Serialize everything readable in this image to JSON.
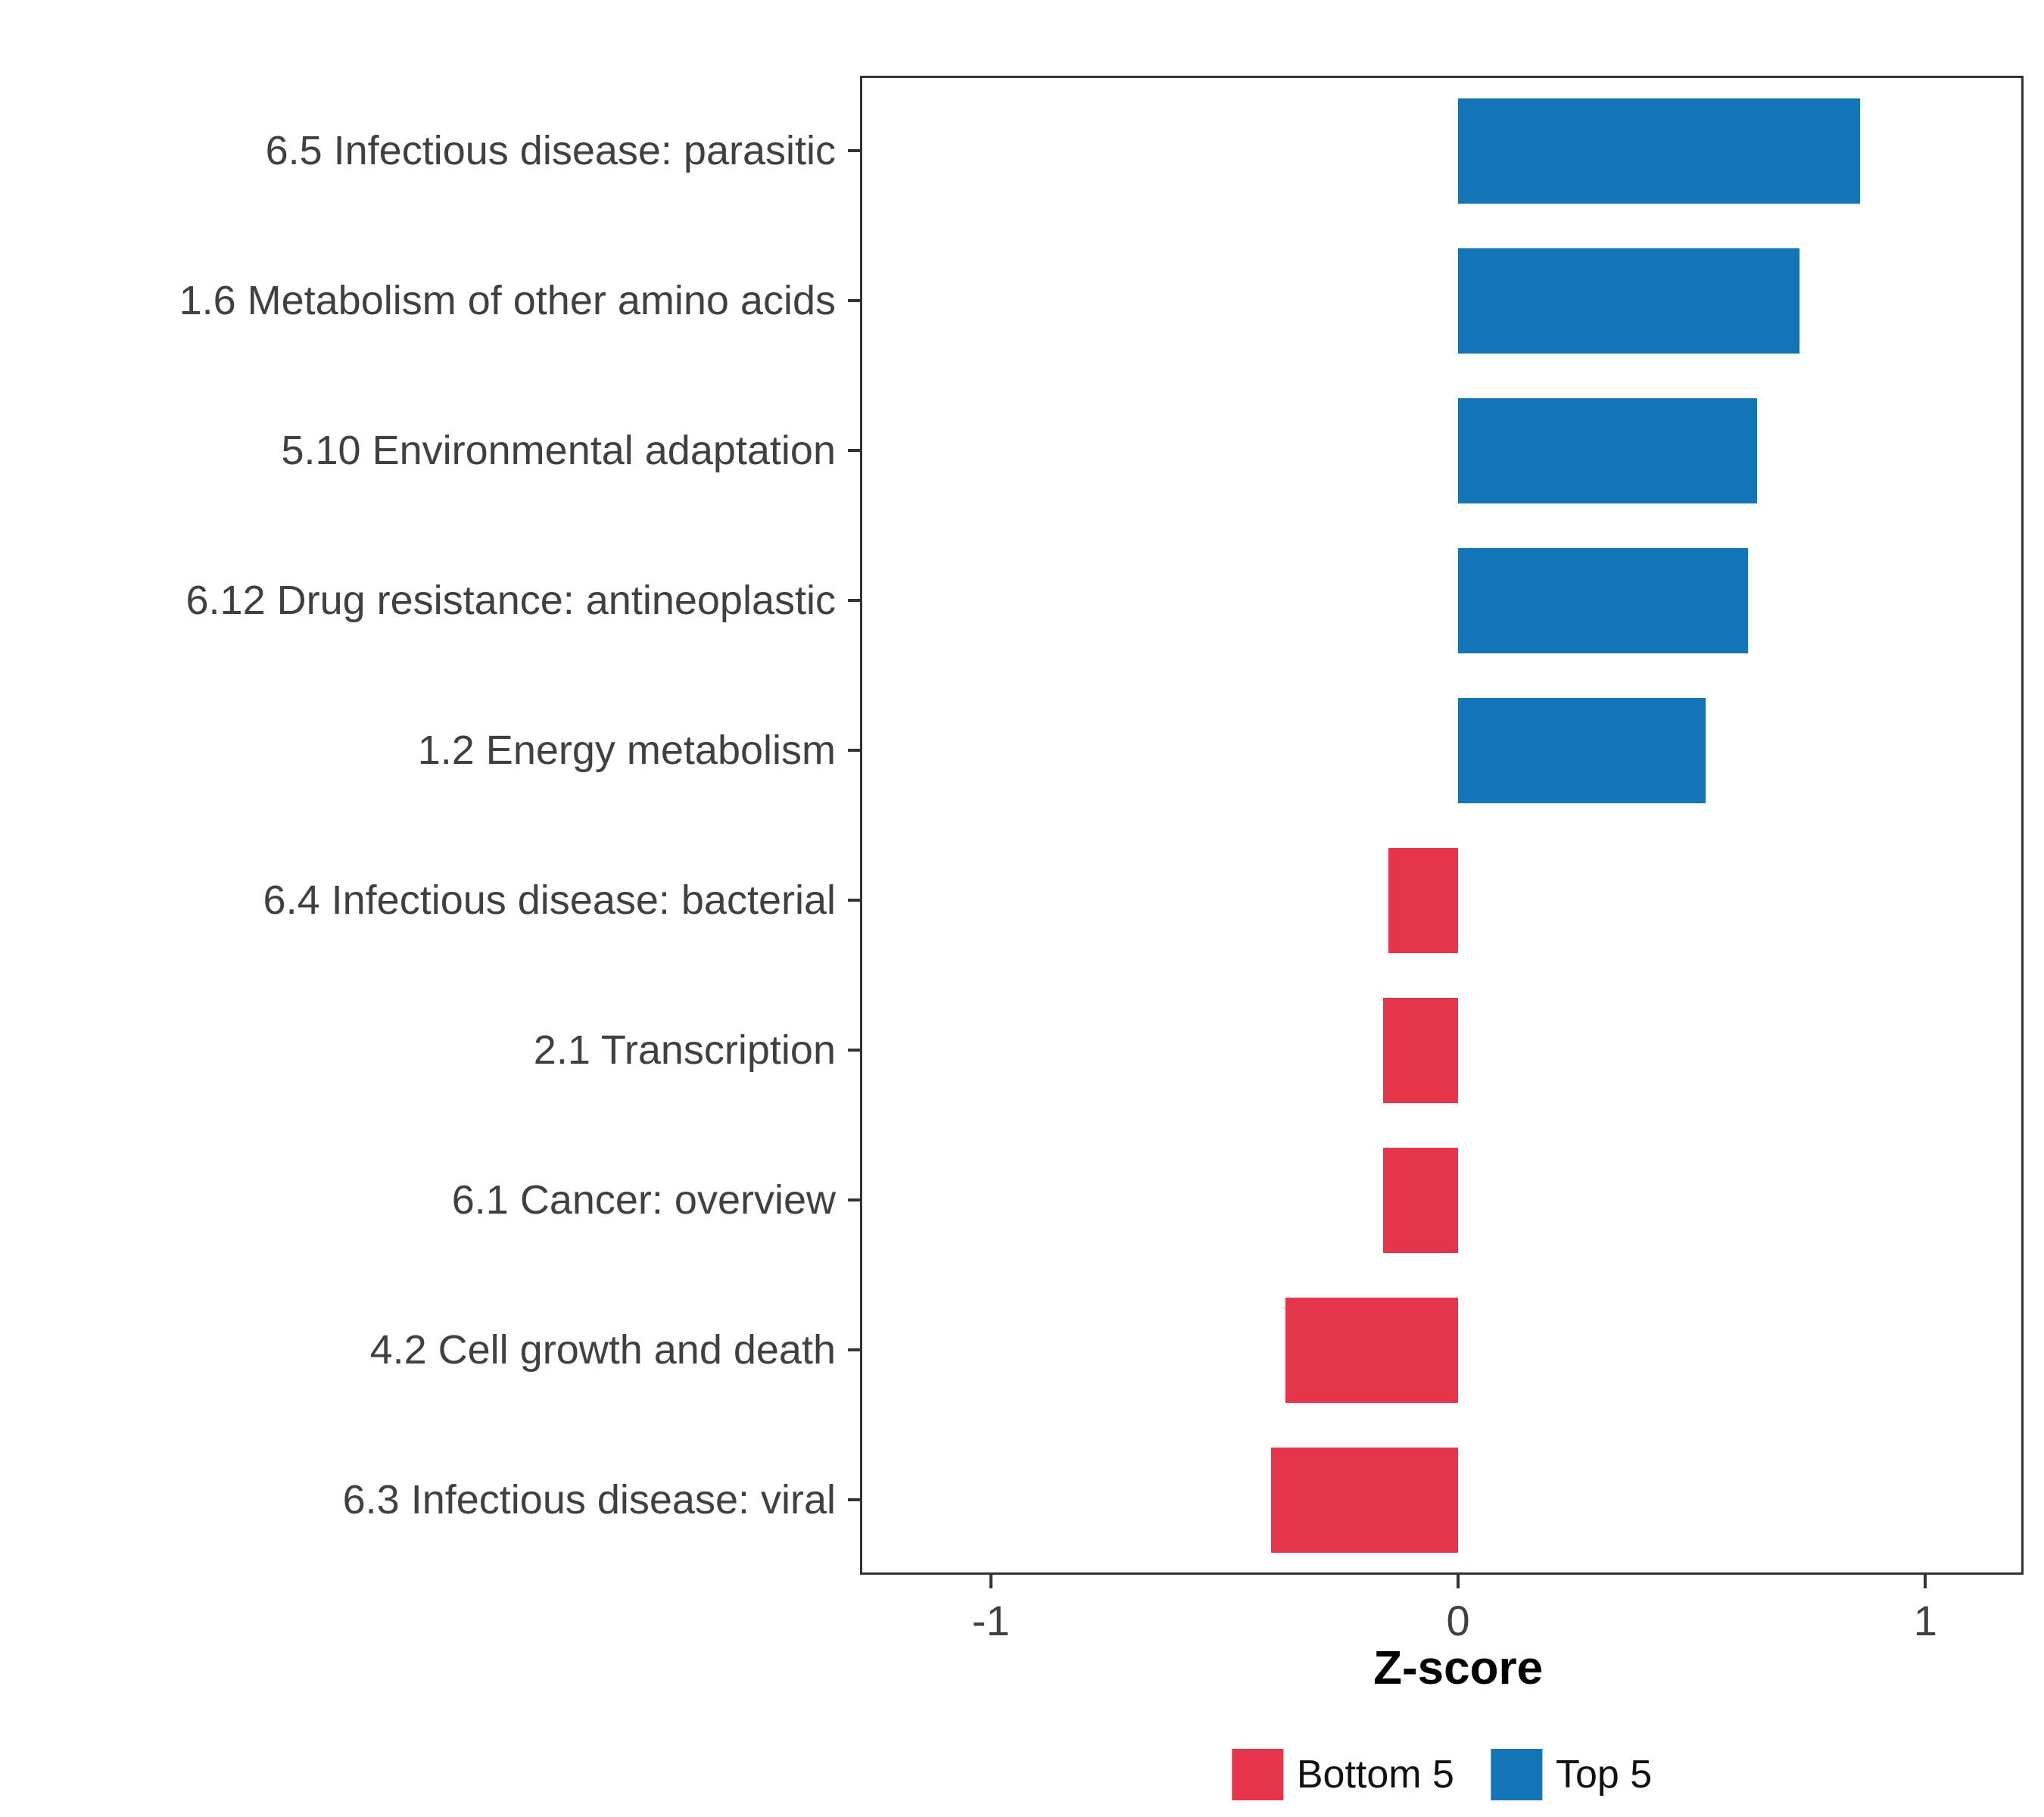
{
  "figure": {
    "background": "#FFFFFF",
    "panel_border_color": "#333333"
  },
  "axis": {
    "x_title": "Z-score",
    "tick_labels": [
      "-1",
      "0",
      "1"
    ]
  },
  "legend": {
    "items": [
      {
        "label": "Bottom 5",
        "color": "#E6354A"
      },
      {
        "label": "Top 5",
        "color": "#1375B5"
      }
    ]
  },
  "chart_data": {
    "type": "bar",
    "orientation": "horizontal",
    "title": "",
    "xlabel": "Z-score",
    "ylabel": "",
    "xlim": [
      -1.28,
      1.21
    ],
    "x_ticks": [
      -1,
      0,
      1
    ],
    "grid": false,
    "legend_position": "bottom",
    "categories": [
      "6.5 Infectious disease: parasitic",
      "1.6 Metabolism of other amino acids",
      "5.10 Environmental adaptation",
      "6.12 Drug resistance: antineoplastic",
      "1.2 Energy metabolism",
      "6.4 Infectious disease: bacterial",
      "2.1 Transcription",
      "6.1 Cancer: overview",
      "4.2 Cell growth and death",
      "6.3 Infectious disease: viral"
    ],
    "values": [
      0.86,
      0.73,
      0.64,
      0.62,
      0.53,
      -0.15,
      -0.16,
      -0.16,
      -0.37,
      -0.4
    ],
    "groups": [
      "Top 5",
      "Top 5",
      "Top 5",
      "Top 5",
      "Top 5",
      "Bottom 5",
      "Bottom 5",
      "Bottom 5",
      "Bottom 5",
      "Bottom 5"
    ],
    "colors": {
      "Top 5": "#1375B5",
      "Bottom 5": "#E6354A"
    }
  }
}
